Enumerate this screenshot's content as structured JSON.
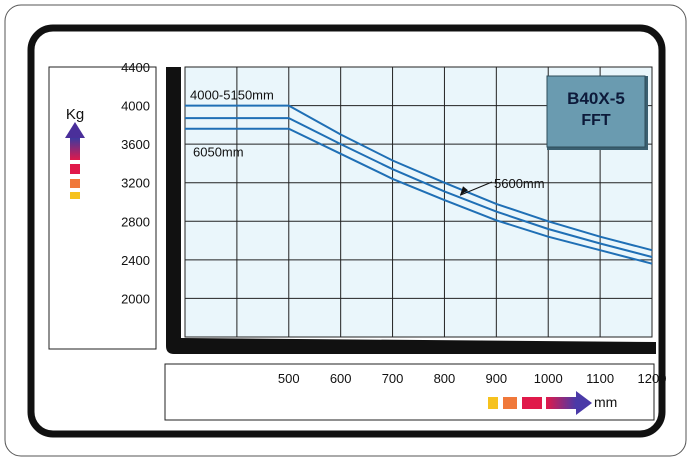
{
  "chart_data": {
    "type": "line",
    "title": "",
    "badge": {
      "model": "B40X-5",
      "variant": "FFT"
    },
    "ylabel": "Kg",
    "xlabel": "mm",
    "yticks": [
      4400,
      4000,
      3600,
      3200,
      2800,
      2400,
      2000
    ],
    "xticks": [
      500,
      600,
      700,
      800,
      900,
      1000,
      1100,
      1200
    ],
    "ylim": [
      1600,
      4400
    ],
    "xlim": [
      300,
      1200
    ],
    "grid": true,
    "series": [
      {
        "name": "4000-5150mm",
        "x": [
          300,
          500,
          600,
          700,
          800,
          900,
          1000,
          1100,
          1200
        ],
        "y": [
          4000,
          4000,
          3700,
          3430,
          3200,
          2980,
          2800,
          2640,
          2500
        ]
      },
      {
        "name": "5600mm",
        "x": [
          300,
          500,
          600,
          700,
          800,
          900,
          1000,
          1100,
          1200
        ],
        "y": [
          3870,
          3870,
          3600,
          3340,
          3110,
          2900,
          2720,
          2570,
          2430
        ]
      },
      {
        "name": "6050mm",
        "x": [
          300,
          500,
          600,
          700,
          800,
          900,
          1000,
          1100,
          1200
        ],
        "y": [
          3760,
          3760,
          3500,
          3240,
          3020,
          2810,
          2640,
          2500,
          2360
        ]
      }
    ],
    "annotations": [
      {
        "text": "4000-5150mm",
        "series": 0
      },
      {
        "text": "6050mm",
        "series": 2
      },
      {
        "text": "5600mm",
        "series": 1
      }
    ],
    "colors": {
      "curve": "#1f6fb5",
      "plot_bg": "#eaf6fb",
      "grid": "#222222",
      "badge": "#6a9bb0",
      "arrow_top": "#4a2f9a",
      "arrow_bottom": "#d4114e"
    }
  }
}
